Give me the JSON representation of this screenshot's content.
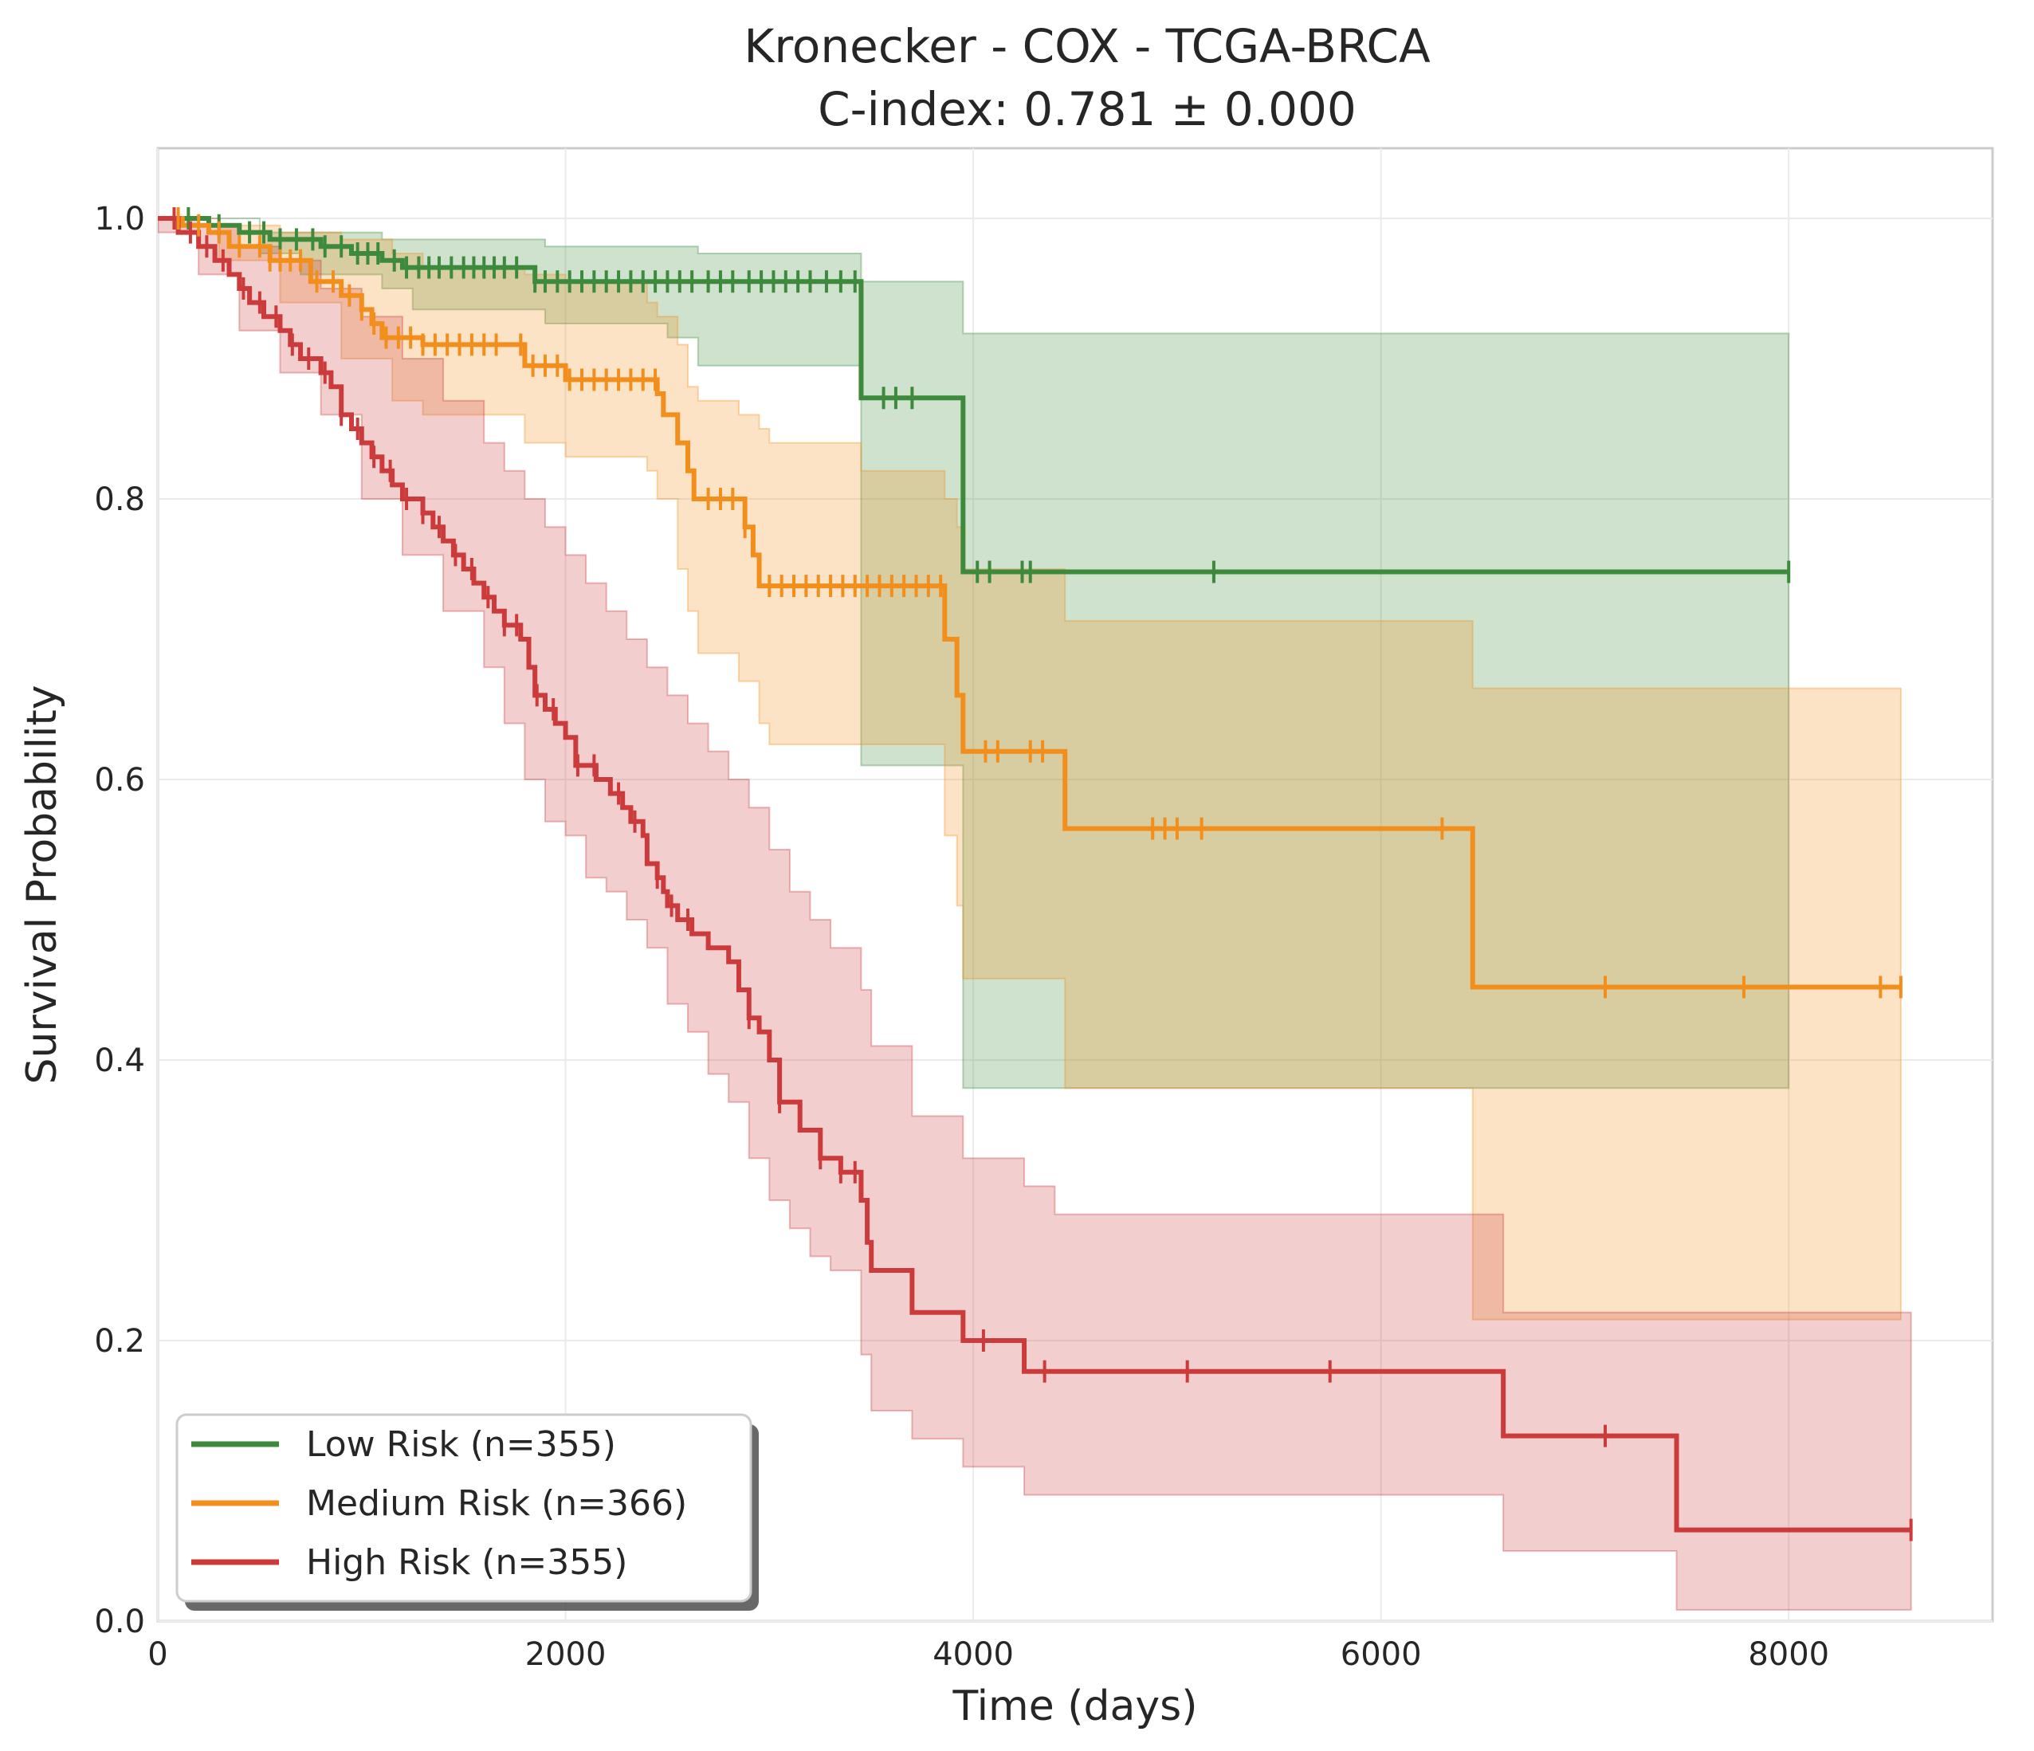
{
  "chart_data": {
    "type": "line",
    "subtype": "kaplan-meier",
    "title_line1": "Kronecker - COX - TCGA-BRCA",
    "title_line2": "C-index: 0.781 ± 0.000",
    "xlabel": "Time (days)",
    "ylabel": "Survival Probability",
    "xlim": [
      0,
      9000
    ],
    "ylim": [
      0,
      1.05
    ],
    "x_ticks": [
      0,
      2000,
      4000,
      6000,
      8000
    ],
    "x_tick_labels": [
      "0",
      "2000",
      "4000",
      "6000",
      "8000"
    ],
    "y_ticks": [
      0,
      0.2,
      0.4,
      0.6,
      0.8,
      1.0
    ],
    "y_tick_labels": [
      "0.0",
      "0.2",
      "0.4",
      "0.6",
      "0.8",
      "1.0"
    ],
    "grid": true,
    "legend_position": "lower-left",
    "series": [
      {
        "name": "Low Risk (n=355)",
        "color": "#3d8a3d",
        "steps": [
          [
            0,
            1.0
          ],
          [
            250,
            0.995
          ],
          [
            400,
            0.99
          ],
          [
            550,
            0.985
          ],
          [
            800,
            0.98
          ],
          [
            950,
            0.975
          ],
          [
            1100,
            0.97
          ],
          [
            1200,
            0.965
          ],
          [
            1850,
            0.955
          ],
          [
            3450,
            0.872
          ],
          [
            3950,
            0.748
          ],
          [
            8000,
            0.748
          ]
        ],
        "ci_steps": [
          [
            0,
            1.0,
            1.0
          ],
          [
            500,
            0.99,
            0.975
          ],
          [
            700,
            0.99,
            0.96
          ],
          [
            1100,
            0.985,
            0.95
          ],
          [
            1250,
            0.985,
            0.935
          ],
          [
            1900,
            0.98,
            0.925
          ],
          [
            2500,
            0.98,
            0.915
          ],
          [
            2650,
            0.975,
            0.895
          ],
          [
            3450,
            0.955,
            0.61
          ],
          [
            3950,
            0.918,
            0.38
          ],
          [
            8000,
            0.918,
            0.38
          ]
        ],
        "censor": [
          150,
          300,
          450,
          520,
          600,
          680,
          760,
          820,
          900,
          980,
          1030,
          1080,
          1160,
          1220,
          1280,
          1330,
          1380,
          1440,
          1500,
          1550,
          1600,
          1650,
          1700,
          1760,
          1850,
          1900,
          1960,
          2020,
          2080,
          2140,
          2200,
          2260,
          2320,
          2380,
          2440,
          2500,
          2560,
          2620,
          2700,
          2760,
          2820,
          2900,
          2960,
          3020,
          3080,
          3140,
          3200,
          3280,
          3350,
          3420,
          3560,
          3620,
          3700,
          4020,
          4080,
          4240,
          4280,
          5180,
          8000
        ]
      },
      {
        "name": "Medium Risk (n=366)",
        "color": "#f28e1c",
        "steps": [
          [
            0,
            1.0
          ],
          [
            120,
            0.995
          ],
          [
            250,
            0.99
          ],
          [
            350,
            0.98
          ],
          [
            550,
            0.97
          ],
          [
            750,
            0.955
          ],
          [
            900,
            0.945
          ],
          [
            1000,
            0.935
          ],
          [
            1050,
            0.925
          ],
          [
            1100,
            0.915
          ],
          [
            1300,
            0.91
          ],
          [
            1800,
            0.895
          ],
          [
            2000,
            0.885
          ],
          [
            2450,
            0.875
          ],
          [
            2480,
            0.86
          ],
          [
            2550,
            0.84
          ],
          [
            2600,
            0.82
          ],
          [
            2630,
            0.8
          ],
          [
            2880,
            0.78
          ],
          [
            2920,
            0.76
          ],
          [
            2950,
            0.738
          ],
          [
            3860,
            0.7
          ],
          [
            3920,
            0.66
          ],
          [
            3950,
            0.62
          ],
          [
            4450,
            0.565
          ],
          [
            6450,
            0.452
          ],
          [
            8550,
            0.452
          ]
        ],
        "ci_steps": [
          [
            0,
            1.0,
            1.0
          ],
          [
            300,
            0.995,
            0.97
          ],
          [
            600,
            0.99,
            0.94
          ],
          [
            900,
            0.985,
            0.9
          ],
          [
            1150,
            0.975,
            0.87
          ],
          [
            1300,
            0.965,
            0.86
          ],
          [
            1800,
            0.96,
            0.84
          ],
          [
            2000,
            0.955,
            0.83
          ],
          [
            2400,
            0.94,
            0.82
          ],
          [
            2450,
            0.93,
            0.8
          ],
          [
            2550,
            0.91,
            0.75
          ],
          [
            2600,
            0.88,
            0.72
          ],
          [
            2650,
            0.87,
            0.69
          ],
          [
            2850,
            0.86,
            0.67
          ],
          [
            2950,
            0.85,
            0.64
          ],
          [
            3000,
            0.84,
            0.625
          ],
          [
            3450,
            0.82,
            0.625
          ],
          [
            3860,
            0.8,
            0.56
          ],
          [
            3920,
            0.78,
            0.51
          ],
          [
            3950,
            0.75,
            0.458
          ],
          [
            4450,
            0.713,
            0.38
          ],
          [
            6450,
            0.665,
            0.215
          ],
          [
            8550,
            0.665,
            0.215
          ]
        ],
        "censor": [
          100,
          200,
          300,
          400,
          500,
          550,
          600,
          650,
          700,
          780,
          860,
          940,
          1000,
          1060,
          1120,
          1180,
          1240,
          1300,
          1360,
          1420,
          1480,
          1540,
          1600,
          1660,
          1780,
          1840,
          1900,
          1960,
          2020,
          2080,
          2140,
          2200,
          2260,
          2320,
          2380,
          2440,
          2700,
          2760,
          2820,
          2880,
          3000,
          3060,
          3120,
          3180,
          3240,
          3300,
          3360,
          3420,
          3480,
          3540,
          3600,
          3660,
          3720,
          3780,
          3840,
          4060,
          4120,
          4280,
          4340,
          4880,
          4940,
          5000,
          5120,
          6300,
          7100,
          7780,
          8450,
          8550
        ]
      },
      {
        "name": "High Risk (n=355)",
        "color": "#cc3b3b",
        "steps": [
          [
            0,
            1.0
          ],
          [
            100,
            0.99
          ],
          [
            200,
            0.98
          ],
          [
            280,
            0.97
          ],
          [
            350,
            0.96
          ],
          [
            400,
            0.95
          ],
          [
            450,
            0.94
          ],
          [
            520,
            0.93
          ],
          [
            600,
            0.92
          ],
          [
            650,
            0.91
          ],
          [
            700,
            0.9
          ],
          [
            800,
            0.89
          ],
          [
            850,
            0.88
          ],
          [
            900,
            0.86
          ],
          [
            950,
            0.85
          ],
          [
            1000,
            0.84
          ],
          [
            1050,
            0.83
          ],
          [
            1100,
            0.82
          ],
          [
            1150,
            0.81
          ],
          [
            1200,
            0.8
          ],
          [
            1300,
            0.79
          ],
          [
            1350,
            0.78
          ],
          [
            1400,
            0.77
          ],
          [
            1450,
            0.76
          ],
          [
            1500,
            0.75
          ],
          [
            1550,
            0.74
          ],
          [
            1600,
            0.73
          ],
          [
            1650,
            0.72
          ],
          [
            1700,
            0.71
          ],
          [
            1780,
            0.7
          ],
          [
            1820,
            0.68
          ],
          [
            1850,
            0.66
          ],
          [
            1900,
            0.65
          ],
          [
            1950,
            0.64
          ],
          [
            2000,
            0.63
          ],
          [
            2050,
            0.61
          ],
          [
            2150,
            0.6
          ],
          [
            2220,
            0.59
          ],
          [
            2280,
            0.58
          ],
          [
            2320,
            0.57
          ],
          [
            2380,
            0.56
          ],
          [
            2400,
            0.54
          ],
          [
            2450,
            0.53
          ],
          [
            2480,
            0.52
          ],
          [
            2500,
            0.51
          ],
          [
            2550,
            0.5
          ],
          [
            2620,
            0.49
          ],
          [
            2700,
            0.48
          ],
          [
            2800,
            0.47
          ],
          [
            2850,
            0.45
          ],
          [
            2900,
            0.43
          ],
          [
            2950,
            0.42
          ],
          [
            3000,
            0.4
          ],
          [
            3050,
            0.37
          ],
          [
            3150,
            0.35
          ],
          [
            3250,
            0.33
          ],
          [
            3350,
            0.32
          ],
          [
            3450,
            0.3
          ],
          [
            3480,
            0.27
          ],
          [
            3500,
            0.25
          ],
          [
            3700,
            0.22
          ],
          [
            3950,
            0.2
          ],
          [
            4250,
            0.178
          ],
          [
            6600,
            0.132
          ],
          [
            7450,
            0.065
          ],
          [
            8600,
            0.065
          ]
        ],
        "ci_steps": [
          [
            0,
            1.0,
            0.99
          ],
          [
            200,
            0.995,
            0.96
          ],
          [
            400,
            0.98,
            0.92
          ],
          [
            600,
            0.97,
            0.89
          ],
          [
            800,
            0.95,
            0.86
          ],
          [
            1000,
            0.93,
            0.8
          ],
          [
            1200,
            0.9,
            0.76
          ],
          [
            1400,
            0.87,
            0.72
          ],
          [
            1600,
            0.84,
            0.68
          ],
          [
            1700,
            0.82,
            0.64
          ],
          [
            1800,
            0.8,
            0.6
          ],
          [
            1900,
            0.78,
            0.57
          ],
          [
            2000,
            0.76,
            0.56
          ],
          [
            2100,
            0.74,
            0.53
          ],
          [
            2200,
            0.72,
            0.52
          ],
          [
            2300,
            0.7,
            0.5
          ],
          [
            2400,
            0.68,
            0.48
          ],
          [
            2500,
            0.66,
            0.44
          ],
          [
            2600,
            0.64,
            0.42
          ],
          [
            2700,
            0.62,
            0.39
          ],
          [
            2800,
            0.6,
            0.37
          ],
          [
            2900,
            0.58,
            0.33
          ],
          [
            3000,
            0.55,
            0.3
          ],
          [
            3100,
            0.52,
            0.28
          ],
          [
            3200,
            0.5,
            0.26
          ],
          [
            3300,
            0.48,
            0.25
          ],
          [
            3450,
            0.45,
            0.19
          ],
          [
            3500,
            0.41,
            0.15
          ],
          [
            3700,
            0.36,
            0.13
          ],
          [
            3950,
            0.33,
            0.11
          ],
          [
            4250,
            0.31,
            0.09
          ],
          [
            4400,
            0.29,
            0.09
          ],
          [
            6600,
            0.29,
            0.09
          ],
          [
            6600,
            0.22,
            0.05
          ],
          [
            7450,
            0.22,
            0.008
          ],
          [
            8600,
            0.22,
            0.008
          ]
        ],
        "censor": [
          80,
          160,
          240,
          320,
          420,
          500,
          580,
          660,
          740,
          820,
          900,
          980,
          1060,
          1140,
          1220,
          1300,
          1380,
          1460,
          1540,
          1620,
          1700,
          1760,
          1860,
          1940,
          2060,
          2140,
          2260,
          2340,
          2450,
          2520,
          2600,
          2900,
          3050,
          3250,
          3350,
          3420,
          4050,
          4350,
          5050,
          5750,
          7100,
          8600
        ]
      }
    ]
  }
}
